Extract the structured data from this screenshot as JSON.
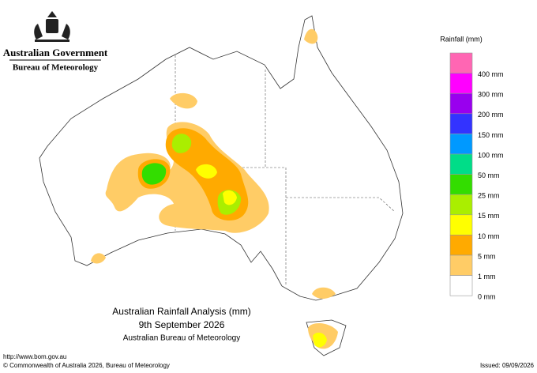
{
  "header": {
    "government": "Australian Government",
    "agency": "Bureau of Meteorology"
  },
  "legend": {
    "title": "Rainfall (mm)",
    "colors": [
      "#ff66b3",
      "#ff00ff",
      "#9900ee",
      "#3333ff",
      "#0099ff",
      "#00dd88",
      "#33dd00",
      "#aaee00",
      "#ffff00",
      "#ffaa00",
      "#ffcc66",
      "#ffffff"
    ],
    "labels": [
      "400 mm",
      "300 mm",
      "200 mm",
      "150 mm",
      "100 mm",
      "50 mm",
      "25 mm",
      "15 mm",
      "10 mm",
      "5 mm",
      "1 mm",
      "0 mm"
    ]
  },
  "map_title": {
    "line1": "Australian Rainfall Analysis (mm)",
    "line2": "9th September 2026",
    "line3": "Australian Bureau of Meteorology"
  },
  "footer": {
    "url": "http://www.bom.gov.au",
    "copyright": "© Commonwealth of Australia 2026, Bureau of Meteorology",
    "issued": "Issued: 09/09/2026"
  }
}
